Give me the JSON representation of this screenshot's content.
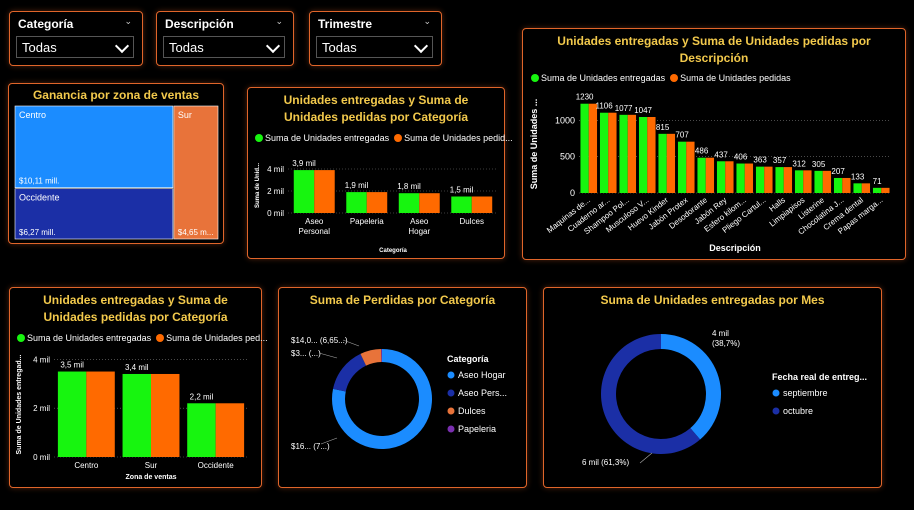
{
  "colors": {
    "entregadas": "#17f50f",
    "pedidas": "#ff6a00",
    "accent": "#e0652a",
    "title": "#f2c94c",
    "centro": "#1b8cff",
    "occidente": "#1b2fa6",
    "sur": "#e8733a",
    "aseo_hogar": "#1b8cff",
    "aseo_personal": "#1b2fa6",
    "dulces": "#e8733a",
    "papeleria": "#7a2fb0"
  },
  "slicers": [
    {
      "label": "Categoría",
      "value": "Todas"
    },
    {
      "label": "Descripción",
      "value": "Todas"
    },
    {
      "label": "Trimestre",
      "value": "Todas"
    }
  ],
  "legend_common": {
    "entregadas": "Suma de Unidades entregadas",
    "pedidas": "Suma de Unidades pedidas"
  },
  "treemap": {
    "title": "Ganancia por zona de ventas",
    "cells": [
      {
        "name": "Centro",
        "label": "$10,11 mill.",
        "value": 10.11
      },
      {
        "name": "Occidente",
        "label": "$6,27 mill.",
        "value": 6.27
      },
      {
        "name": "Sur",
        "label": "$4,65 m...",
        "value": 4.65
      }
    ]
  },
  "chart_data": [
    {
      "id": "cat",
      "type": "bar",
      "title": "Unidades entregadas y Suma de Unidades pedidas por Categoría",
      "legend_pedidas": "Suma de Unidades pedid...",
      "xlabel": "Categoría",
      "ylabel": "Suma de Unid...",
      "categories": [
        "Aseo Personal",
        "Papeleria",
        "Aseo Hogar",
        "Dulces"
      ],
      "data_labels": [
        "3,9 mil",
        "1,9 mil",
        "1,8 mil",
        "1,5 mil"
      ],
      "series": [
        {
          "name": "Suma de Unidades entregadas",
          "values": [
            3900,
            1900,
            1800,
            1500
          ]
        },
        {
          "name": "Suma de Unidades pedidas",
          "values": [
            3900,
            1900,
            1800,
            1500
          ]
        }
      ],
      "ylim": [
        0,
        5000
      ],
      "yticks": [
        0,
        2000,
        4000
      ],
      "ytick_labels": [
        "0 mil",
        "2 mil",
        "4 mil"
      ]
    },
    {
      "id": "desc",
      "type": "bar",
      "title": "Unidades entregadas y Suma de Unidades pedidas por Descripción",
      "xlabel": "Descripción",
      "ylabel": "Suma de Unidades ...",
      "categories": [
        "Maquinas de...",
        "Cuaderno ar...",
        "Shampoo Pol...",
        "Musculoso V...",
        "Huevo Kinder",
        "Jabón Protex",
        "Desodorante",
        "Jabón Rey",
        "Esfero kilom...",
        "Pliego Cartul...",
        "Halls",
        "Limpiapisos",
        "Listerine",
        "Chocolatina J...",
        "Crema dental",
        "Papas marga..."
      ],
      "data_labels": [
        "1230",
        "1106",
        "1077",
        "1047",
        "815",
        "707",
        "486",
        "437",
        "406",
        "363",
        "357",
        "312",
        "305",
        "207",
        "133",
        "71"
      ],
      "series": [
        {
          "name": "Suma de Unidades entregadas",
          "values": [
            1230,
            1106,
            1077,
            1047,
            815,
            707,
            486,
            437,
            406,
            363,
            357,
            312,
            305,
            207,
            133,
            71
          ]
        },
        {
          "name": "Suma de Unidades pedidas",
          "values": [
            1230,
            1106,
            1077,
            1047,
            815,
            707,
            486,
            437,
            406,
            363,
            357,
            312,
            305,
            207,
            133,
            71
          ]
        }
      ],
      "ylim": [
        0,
        1350
      ],
      "yticks": [
        0,
        500,
        1000
      ],
      "ytick_labels": [
        "0",
        "500",
        "1000"
      ]
    },
    {
      "id": "zona",
      "type": "bar",
      "title": "Unidades entregadas y Suma de Unidades pedidas por Categoría",
      "legend_pedidas": "Suma de Unidades ped...",
      "xlabel": "Zona de ventas",
      "ylabel": "Suma de Unidades entregad...",
      "categories": [
        "Centro",
        "Sur",
        "Occidente"
      ],
      "data_labels": [
        "3,5 mil",
        "3,4 mil",
        "2,2 mil"
      ],
      "series": [
        {
          "name": "Suma de Unidades entregadas",
          "values": [
            3500,
            3400,
            2200
          ]
        },
        {
          "name": "Suma de Unidades pedidas",
          "values": [
            3500,
            3400,
            2200
          ]
        }
      ],
      "ylim": [
        0,
        4300
      ],
      "yticks": [
        0,
        2000,
        4000
      ],
      "ytick_labels": [
        "0 mil",
        "2 mil",
        "4 mil"
      ]
    },
    {
      "id": "perdidas",
      "type": "pie",
      "title": "Suma de Perdidas por Categoría",
      "legend_title": "Categoría",
      "labels": [
        "Aseo Hogar",
        "Aseo Pers...",
        "Dulces",
        "Papeleria"
      ],
      "values": [
        16.0,
        3.0,
        1.4,
        0.05
      ],
      "data_labels": [
        "$16... (7...)",
        "$3... (...)",
        "$14,0... (6,65...)",
        ""
      ]
    },
    {
      "id": "mes",
      "type": "pie",
      "title": "Suma de Unidades entregadas por Mes",
      "legend_title": "Fecha real de entreg...",
      "labels": [
        "septiembre",
        "octubre"
      ],
      "values": [
        38.7,
        61.3
      ],
      "data_labels": [
        "4 mil (38,7%)",
        "6 mil (61,3%)"
      ]
    }
  ]
}
